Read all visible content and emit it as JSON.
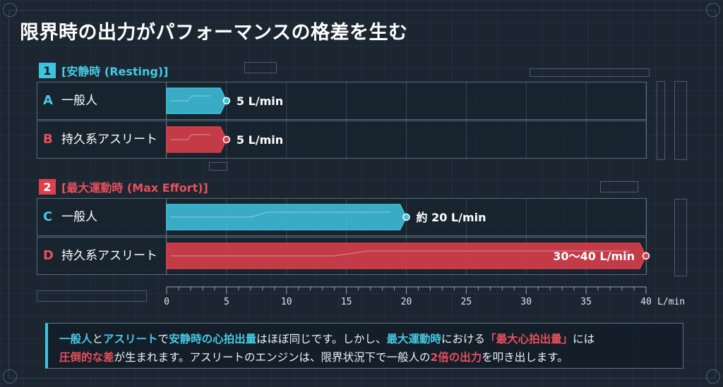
{
  "title": "限界時の出力がパフォーマンスの格差を生む",
  "sections": [
    {
      "num": "1",
      "label": "[安静時 (Resting)]"
    },
    {
      "num": "2",
      "label": "[最大運動時 (Max Effort)]"
    }
  ],
  "rows": [
    {
      "letter": "A",
      "label": "一般人"
    },
    {
      "letter": "B",
      "label": "持久系アスリート"
    },
    {
      "letter": "C",
      "label": "一般人"
    },
    {
      "letter": "D",
      "label": "持久系アスリート"
    }
  ],
  "chart_data": {
    "type": "bar",
    "orientation": "horizontal",
    "categories": [
      "A 一般人 (安静時)",
      "B 持久系アスリート (安静時)",
      "C 一般人 (最大運動時)",
      "D 持久系アスリート (最大運動時)"
    ],
    "values": [
      5,
      5,
      20,
      40
    ],
    "value_labels": [
      "5 L/min",
      "5 L/min",
      "約 20 L/min",
      "30〜40 L/min"
    ],
    "colors": [
      "#3fc3df",
      "#e0404c",
      "#3fc3df",
      "#e0404c"
    ],
    "xlim": [
      0,
      40
    ],
    "xticks": [
      0,
      5,
      10,
      15,
      20,
      25,
      30,
      35,
      40
    ],
    "xunit": "L/min",
    "grid": true
  },
  "note": {
    "line1": [
      {
        "t": "一般人",
        "c": "cyan"
      },
      {
        "t": "と",
        "c": ""
      },
      {
        "t": "アスリート",
        "c": "cyan"
      },
      {
        "t": "で",
        "c": ""
      },
      {
        "t": "安静時の心拍出量",
        "c": "cyan"
      },
      {
        "t": "はほぼ同じです。しかし、",
        "c": ""
      },
      {
        "t": "最大運動時",
        "c": "cyan"
      },
      {
        "t": "における",
        "c": ""
      },
      {
        "t": "「最大心拍出量」",
        "c": "red"
      },
      {
        "t": "には",
        "c": ""
      }
    ],
    "line2": [
      {
        "t": "圧倒的な差",
        "c": "red"
      },
      {
        "t": "が生まれます。アスリートのエンジンは、限界状況下で一般人の",
        "c": ""
      },
      {
        "t": "2倍の出力",
        "c": "red"
      },
      {
        "t": "を叩き出します。",
        "c": ""
      }
    ]
  }
}
